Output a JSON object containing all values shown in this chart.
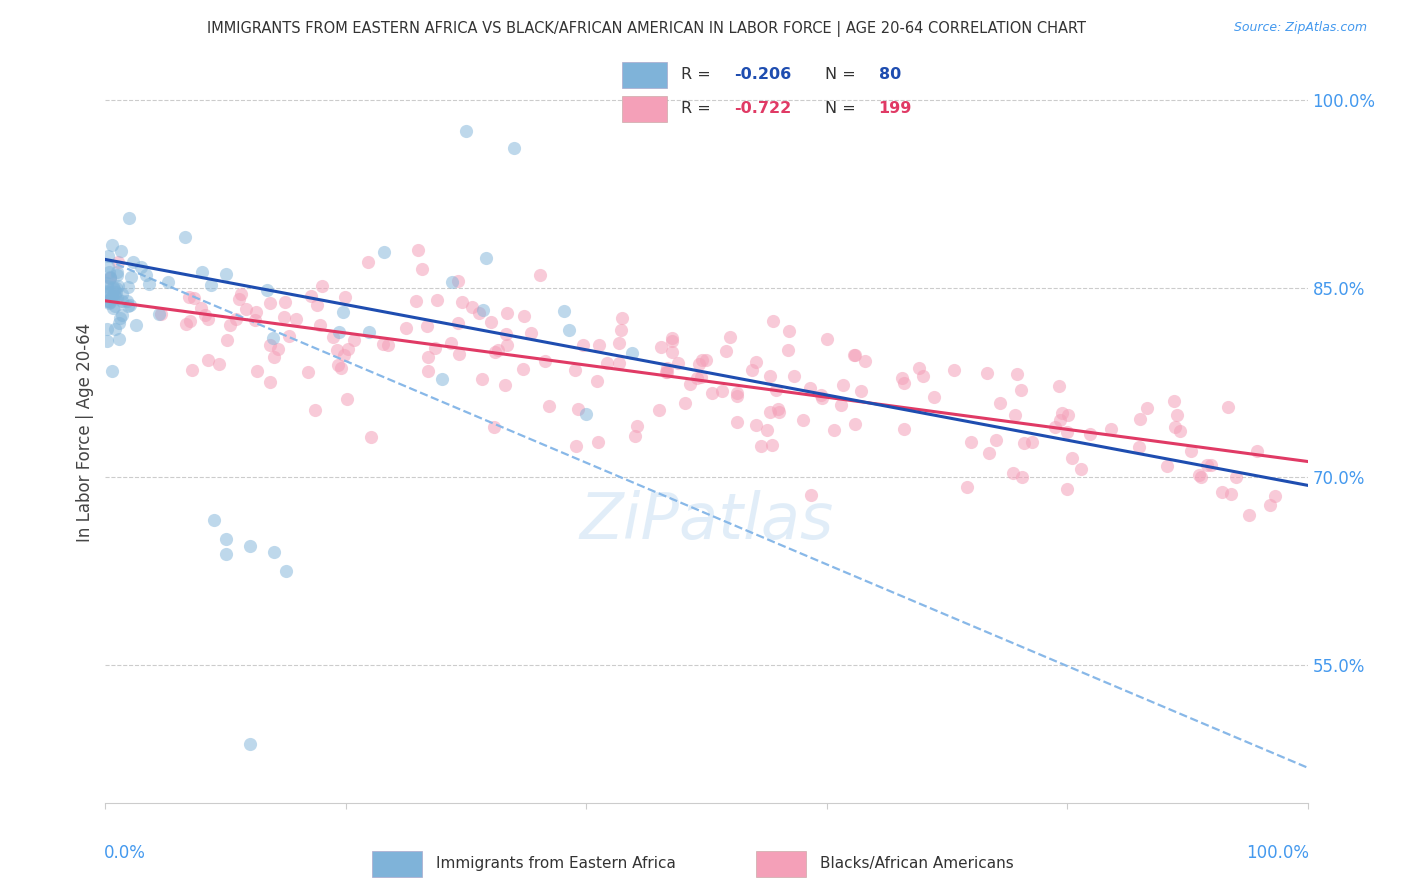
{
  "title": "IMMIGRANTS FROM EASTERN AFRICA VS BLACK/AFRICAN AMERICAN IN LABOR FORCE | AGE 20-64 CORRELATION CHART",
  "source": "Source: ZipAtlas.com",
  "ylabel": "In Labor Force | Age 20-64",
  "blue_R": -0.206,
  "blue_N": 80,
  "pink_R": -0.722,
  "pink_N": 199,
  "legend_label_blue": "Immigrants from Eastern Africa",
  "legend_label_pink": "Blacks/African Americans",
  "blue_marker_color": "#7fb3d9",
  "pink_marker_color": "#f4a0b8",
  "blue_line_color": "#1e4db0",
  "pink_line_color": "#e03a65",
  "dashed_line_color": "#88b8e8",
  "background_color": "#ffffff",
  "grid_color": "#cccccc",
  "title_color": "#333333",
  "axis_label_color": "#4499ee",
  "right_yticks": [
    0.55,
    0.7,
    0.85,
    1.0
  ],
  "right_yticklabels": [
    "55.0%",
    "70.0%",
    "85.0%",
    "100.0%"
  ],
  "xlim": [
    0.0,
    1.0
  ],
  "ylim": [
    0.44,
    1.03
  ],
  "blue_line_x": [
    0.0,
    1.0
  ],
  "blue_line_y": [
    0.873,
    0.693
  ],
  "pink_line_x": [
    0.0,
    1.0
  ],
  "pink_line_y": [
    0.84,
    0.712
  ],
  "dashed_line_x": [
    0.0,
    1.0
  ],
  "dashed_line_y": [
    0.873,
    0.468
  ],
  "watermark_text": "ZiPatlas",
  "watermark_color": "#c5ddf2",
  "watermark_alpha": 0.5
}
